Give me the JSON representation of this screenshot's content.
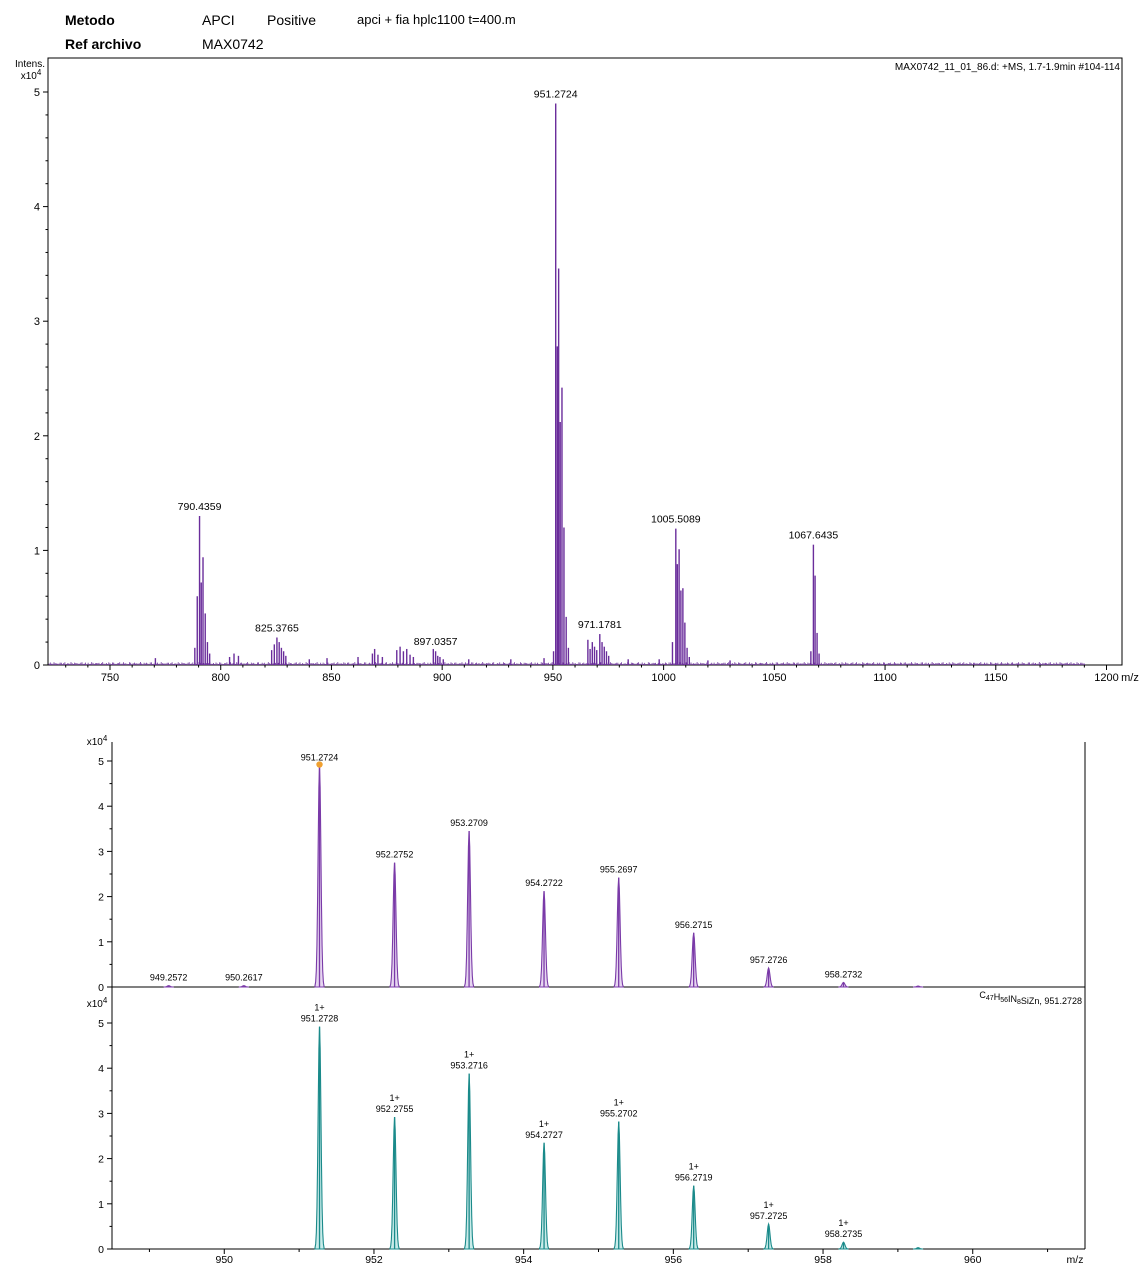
{
  "header": {
    "method_label": "Metodo",
    "method_value": "APCI",
    "polarity": "Positive",
    "method_file": "apci + fia hplc1100 t=400.m",
    "ref_label": "Ref archivo",
    "ref_value": "MAX0742"
  },
  "chart_data": [
    {
      "type": "bar",
      "title": "MAX0742_11_01_86.d: +MS, 1.7-1.9min #104-114",
      "ylabel": "Intens.",
      "yunit": "x10^4",
      "xlabel": "m/z",
      "xlim": [
        722,
        1207
      ],
      "ylim": [
        0,
        5.2
      ],
      "xticks": [
        750,
        800,
        850,
        900,
        950,
        1000,
        1050,
        1100,
        1150,
        1200
      ],
      "yticks": [
        0,
        1,
        2,
        3,
        4,
        5
      ],
      "color": "#6a2d9b",
      "peaks": [
        {
          "x": 770.5,
          "y": 0.06
        },
        {
          "x": 788.3,
          "y": 0.15
        },
        {
          "x": 789.4,
          "y": 0.6
        },
        {
          "x": 790.4359,
          "y": 1.3,
          "label": "790.4359"
        },
        {
          "x": 791.2,
          "y": 0.72
        },
        {
          "x": 792.0,
          "y": 0.94
        },
        {
          "x": 793.0,
          "y": 0.45
        },
        {
          "x": 794.0,
          "y": 0.2
        },
        {
          "x": 795.0,
          "y": 0.1
        },
        {
          "x": 804.0,
          "y": 0.07
        },
        {
          "x": 806.0,
          "y": 0.1
        },
        {
          "x": 808.0,
          "y": 0.08
        },
        {
          "x": 823.0,
          "y": 0.13
        },
        {
          "x": 824.2,
          "y": 0.18
        },
        {
          "x": 825.3765,
          "y": 0.24,
          "label": "825.3765"
        },
        {
          "x": 826.4,
          "y": 0.2
        },
        {
          "x": 827.4,
          "y": 0.15
        },
        {
          "x": 828.4,
          "y": 0.12
        },
        {
          "x": 829.4,
          "y": 0.08
        },
        {
          "x": 840.0,
          "y": 0.05
        },
        {
          "x": 848.0,
          "y": 0.06
        },
        {
          "x": 862.0,
          "y": 0.07
        },
        {
          "x": 868.5,
          "y": 0.1
        },
        {
          "x": 869.5,
          "y": 0.14
        },
        {
          "x": 871.0,
          "y": 0.09
        },
        {
          "x": 873.0,
          "y": 0.07
        },
        {
          "x": 879.5,
          "y": 0.13
        },
        {
          "x": 881.0,
          "y": 0.16
        },
        {
          "x": 882.5,
          "y": 0.12
        },
        {
          "x": 884.0,
          "y": 0.14
        },
        {
          "x": 885.5,
          "y": 0.09
        },
        {
          "x": 887.0,
          "y": 0.07
        },
        {
          "x": 896.0,
          "y": 0.14
        },
        {
          "x": 897.0357,
          "y": 0.12,
          "label": "897.0357"
        },
        {
          "x": 898.0,
          "y": 0.08
        },
        {
          "x": 899.0,
          "y": 0.07
        },
        {
          "x": 900.5,
          "y": 0.05
        },
        {
          "x": 912.0,
          "y": 0.05
        },
        {
          "x": 931.0,
          "y": 0.05
        },
        {
          "x": 946.0,
          "y": 0.06
        },
        {
          "x": 950.3,
          "y": 0.12
        },
        {
          "x": 951.2724,
          "y": 4.9,
          "label": "951.2724"
        },
        {
          "x": 952.0,
          "y": 2.78
        },
        {
          "x": 952.6,
          "y": 3.46
        },
        {
          "x": 953.3,
          "y": 2.12
        },
        {
          "x": 954.1,
          "y": 2.42
        },
        {
          "x": 955.0,
          "y": 1.2
        },
        {
          "x": 956.0,
          "y": 0.42
        },
        {
          "x": 957.0,
          "y": 0.15
        },
        {
          "x": 965.8,
          "y": 0.22
        },
        {
          "x": 966.8,
          "y": 0.14
        },
        {
          "x": 967.8,
          "y": 0.2
        },
        {
          "x": 968.8,
          "y": 0.16
        },
        {
          "x": 969.8,
          "y": 0.13
        },
        {
          "x": 971.1781,
          "y": 0.27,
          "label": "971.1781"
        },
        {
          "x": 972.2,
          "y": 0.2
        },
        {
          "x": 973.2,
          "y": 0.16
        },
        {
          "x": 974.2,
          "y": 0.12
        },
        {
          "x": 975.2,
          "y": 0.08
        },
        {
          "x": 984.0,
          "y": 0.05
        },
        {
          "x": 998.0,
          "y": 0.05
        },
        {
          "x": 1004.0,
          "y": 0.2
        },
        {
          "x": 1005.5089,
          "y": 1.19,
          "label": "1005.5089"
        },
        {
          "x": 1006.2,
          "y": 0.88
        },
        {
          "x": 1007.0,
          "y": 1.01
        },
        {
          "x": 1007.8,
          "y": 0.65
        },
        {
          "x": 1008.7,
          "y": 0.67
        },
        {
          "x": 1009.6,
          "y": 0.37
        },
        {
          "x": 1010.6,
          "y": 0.15
        },
        {
          "x": 1011.6,
          "y": 0.07
        },
        {
          "x": 1020.0,
          "y": 0.04
        },
        {
          "x": 1030.0,
          "y": 0.04
        },
        {
          "x": 1066.5,
          "y": 0.12
        },
        {
          "x": 1067.6435,
          "y": 1.05,
          "label": "1067.6435"
        },
        {
          "x": 1068.4,
          "y": 0.78
        },
        {
          "x": 1069.3,
          "y": 0.28
        },
        {
          "x": 1070.2,
          "y": 0.1
        }
      ]
    },
    {
      "type": "bar",
      "title": "",
      "yunit": "x10^4",
      "xlim": [
        948.5,
        961.5
      ],
      "ylim": [
        0,
        5.4
      ],
      "yticks": [
        0,
        1,
        2,
        3,
        4,
        5
      ],
      "color": "#7a3aa8",
      "peaks": [
        {
          "x": 949.2572,
          "y": 0.03,
          "label": "949.2572"
        },
        {
          "x": 950.2617,
          "y": 0.03,
          "label": "950.2617"
        },
        {
          "x": 951.2724,
          "y": 4.9,
          "label": "951.2724"
        },
        {
          "x": 952.2752,
          "y": 2.75,
          "label": "952.2752"
        },
        {
          "x": 953.2709,
          "y": 3.45,
          "label": "953.2709"
        },
        {
          "x": 954.2722,
          "y": 2.12,
          "label": "954.2722"
        },
        {
          "x": 955.2697,
          "y": 2.42,
          "label": "955.2697"
        },
        {
          "x": 956.2715,
          "y": 1.2,
          "label": "956.2715"
        },
        {
          "x": 957.2726,
          "y": 0.42,
          "label": "957.2726"
        },
        {
          "x": 958.2732,
          "y": 0.1,
          "label": "958.2732"
        },
        {
          "x": 959.27,
          "y": 0.02
        }
      ]
    },
    {
      "type": "bar",
      "title": "C47H56IN8SiZn, 951.2728",
      "yunit": "x10^4",
      "xlabel": "m/z",
      "xlim": [
        948.5,
        961.5
      ],
      "ylim": [
        0,
        5.4
      ],
      "xticks": [
        950,
        952,
        954,
        956,
        958,
        960
      ],
      "yticks": [
        0,
        1,
        2,
        3,
        4,
        5
      ],
      "color": "#1a8a8a",
      "charge": "1+",
      "peaks": [
        {
          "x": 951.2728,
          "y": 4.92,
          "label": "951.2728"
        },
        {
          "x": 952.2755,
          "y": 2.92,
          "label": "952.2755"
        },
        {
          "x": 953.2716,
          "y": 3.88,
          "label": "953.2716"
        },
        {
          "x": 954.2727,
          "y": 2.35,
          "label": "954.2727"
        },
        {
          "x": 955.2702,
          "y": 2.82,
          "label": "955.2702"
        },
        {
          "x": 956.2719,
          "y": 1.4,
          "label": "956.2719"
        },
        {
          "x": 957.2725,
          "y": 0.55,
          "label": "957.2725"
        },
        {
          "x": 958.2735,
          "y": 0.15,
          "label": "958.2735"
        },
        {
          "x": 959.27,
          "y": 0.03
        }
      ]
    }
  ]
}
